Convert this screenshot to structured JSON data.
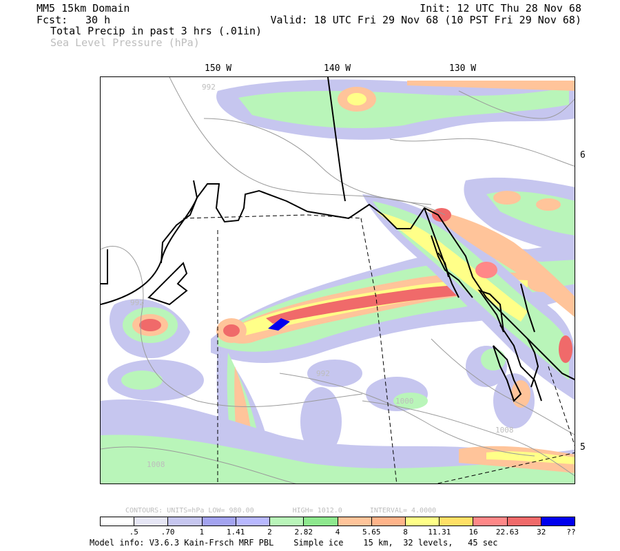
{
  "header": {
    "domain": "MM5 15km Domain",
    "init": "Init: 12 UTC Thu 28 Nov 68",
    "fcst_label": "Fcst:",
    "fcst_value": "30 h",
    "valid": "Valid: 18 UTC Fri 29 Nov 68 (10 PST Fri 29 Nov 68)",
    "field1": "Total Precip in past 3 hrs (.01in)",
    "field2": "Sea Level Pressure (hPa)"
  },
  "longitudes": [
    "150 W",
    "140 W",
    "130 W"
  ],
  "latitudes": [
    "6",
    "5"
  ],
  "isobar_labels": [
    "992",
    "992",
    "992",
    "1000",
    "1008",
    "1008"
  ],
  "contour_info": {
    "contours": "CONTOURS:",
    "units": "UNITS=hPa",
    "low": "LOW=",
    "low_val": "980.00",
    "high": "HIGH=",
    "high_val": "1012.0",
    "interval": "INTERVAL=",
    "interval_val": "4.0000"
  },
  "legend": {
    "colors": [
      "#ffffff",
      "#e6e6f5",
      "#c6c6ef",
      "#a3a3f0",
      "#b8b8ff",
      "#b9f5b9",
      "#8ee88e",
      "#ffc49a",
      "#ffb48a",
      "#ffff88",
      "#ffe066",
      "#ff8888",
      "#f06a6a",
      "#0000ee"
    ],
    "labels": [
      ".5",
      ".70",
      "1",
      "1.41",
      "2",
      "2.82",
      "4",
      "5.65",
      "8",
      "11.31",
      "16",
      "22.63",
      "32",
      "??"
    ]
  },
  "footer": {
    "model_info": "Model info: V3.6.3 Kain-Frsch MRF PBL",
    "ice": "Simple ice",
    "res": "15 km,",
    "levels": "32 levels,",
    "step": "45 sec"
  }
}
